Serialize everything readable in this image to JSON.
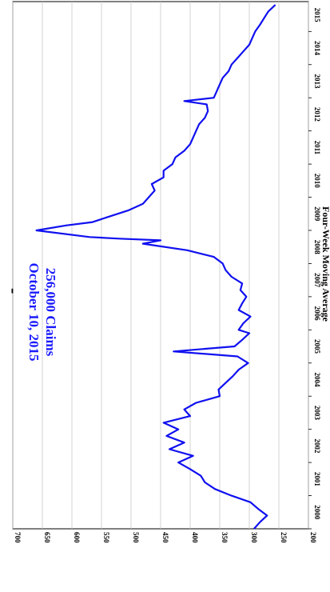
{
  "chart_data": {
    "type": "line",
    "ylabel": "Four-Week Moving Average",
    "ylim": [
      200,
      700
    ],
    "y_ticks": [
      "200",
      "250",
      "300",
      "350",
      "400",
      "450",
      "500",
      "550",
      "600",
      "650",
      "700"
    ],
    "x_ticks": [
      "2000",
      "2001",
      "2002",
      "2003",
      "2004",
      "2005",
      "2006",
      "2007",
      "2008",
      "2009",
      "2010",
      "2011",
      "2012",
      "2013",
      "2014",
      "2015"
    ],
    "xlim": [
      2000,
      2015.9
    ],
    "annotation": [
      "256,000 Claims",
      "October 10, 2015"
    ],
    "series_color": "#1010f0",
    "grid": true,
    "x": [
      2000.0,
      2000.2,
      2000.4,
      2000.6,
      2000.8,
      2001.0,
      2001.2,
      2001.4,
      2001.6,
      2001.8,
      2002.0,
      2002.2,
      2002.4,
      2002.6,
      2002.8,
      2003.0,
      2003.2,
      2003.4,
      2003.6,
      2003.8,
      2004.0,
      2004.2,
      2004.4,
      2004.6,
      2004.8,
      2005.0,
      2005.2,
      2005.35,
      2005.5,
      2005.7,
      2005.9,
      2006.0,
      2006.2,
      2006.4,
      2006.6,
      2006.8,
      2007.0,
      2007.2,
      2007.4,
      2007.6,
      2007.8,
      2008.0,
      2008.2,
      2008.4,
      2008.6,
      2008.7,
      2008.75,
      2008.8,
      2009.0,
      2009.15,
      2009.25,
      2009.4,
      2009.6,
      2009.8,
      2010.0,
      2010.2,
      2010.4,
      2010.6,
      2010.8,
      2011.0,
      2011.2,
      2011.4,
      2011.6,
      2011.8,
      2012.0,
      2012.2,
      2012.4,
      2012.6,
      2012.8,
      2012.9,
      2013.0,
      2013.2,
      2013.4,
      2013.6,
      2013.8,
      2014.0,
      2014.2,
      2014.4,
      2014.6,
      2014.8,
      2015.0,
      2015.2,
      2015.4,
      2015.6,
      2015.8
    ],
    "y": [
      292,
      282,
      270,
      285,
      298,
      330,
      358,
      375,
      382,
      400,
      420,
      395,
      435,
      410,
      440,
      420,
      445,
      400,
      410,
      390,
      350,
      352,
      340,
      328,
      318,
      302,
      320,
      428,
      325,
      312,
      300,
      318,
      310,
      298,
      318,
      312,
      305,
      315,
      312,
      330,
      340,
      345,
      360,
      405,
      480,
      450,
      520,
      570,
      660,
      610,
      565,
      540,
      505,
      480,
      470,
      460,
      465,
      445,
      445,
      430,
      425,
      410,
      400,
      395,
      390,
      385,
      375,
      370,
      372,
      410,
      360,
      355,
      350,
      345,
      335,
      330,
      320,
      310,
      300,
      295,
      290,
      282,
      275,
      268,
      256
    ]
  }
}
